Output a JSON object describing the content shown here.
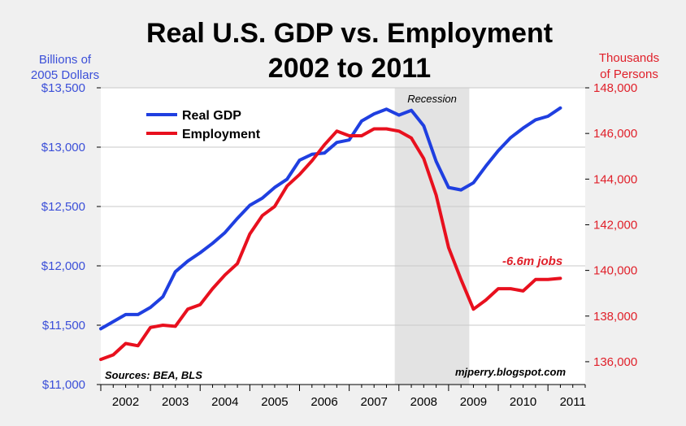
{
  "chart_data": {
    "type": "line",
    "title_line1": "Real U.S. GDP vs. Employment",
    "title_line2": "2002 to 2011",
    "ylabel_left": [
      "Billions of",
      "2005 Dollars"
    ],
    "ylabel_right": [
      "Thousands",
      "of Persons"
    ],
    "x_ticks": [
      "2002",
      "2003",
      "2004",
      "2005",
      "2006",
      "2007",
      "2008",
      "2009",
      "2010",
      "2011"
    ],
    "xlim": [
      2002.0,
      2011.75
    ],
    "ylim_left": [
      11000,
      13500
    ],
    "ylim_right": [
      135000,
      148000
    ],
    "left_ticks": [
      {
        "value": 11000,
        "label": "$11,000"
      },
      {
        "value": 11500,
        "label": "$11,500"
      },
      {
        "value": 12000,
        "label": "$12,000"
      },
      {
        "value": 12500,
        "label": "$12,500"
      },
      {
        "value": 13000,
        "label": "$13,000"
      },
      {
        "value": 13500,
        "label": "$13,500"
      }
    ],
    "right_ticks": [
      {
        "value": 136000,
        "label": "136,000"
      },
      {
        "value": 138000,
        "label": "138,000"
      },
      {
        "value": 140000,
        "label": "140,000"
      },
      {
        "value": 142000,
        "label": "142,000"
      },
      {
        "value": 144000,
        "label": "144,000"
      },
      {
        "value": 146000,
        "label": "146,000"
      },
      {
        "value": 148000,
        "label": "148,000"
      }
    ],
    "grid": true,
    "legend_position": "top-left",
    "recession": {
      "start": 2007.917,
      "end": 2009.417,
      "label": "Recession",
      "color": "#e3e3e3"
    },
    "series": [
      {
        "name": "Real GDP",
        "axis": "left",
        "color": "#1f3fe0",
        "x": [
          2002.0,
          2002.25,
          2002.5,
          2002.75,
          2003.0,
          2003.25,
          2003.5,
          2003.75,
          2004.0,
          2004.25,
          2004.5,
          2004.75,
          2005.0,
          2005.25,
          2005.5,
          2005.75,
          2006.0,
          2006.25,
          2006.5,
          2006.75,
          2007.0,
          2007.25,
          2007.5,
          2007.75,
          2008.0,
          2008.25,
          2008.5,
          2008.75,
          2009.0,
          2009.25,
          2009.5,
          2009.75,
          2010.0,
          2010.25,
          2010.5,
          2010.75,
          2011.0,
          2011.25
        ],
        "values": [
          11470,
          11530,
          11590,
          11590,
          11650,
          11740,
          11950,
          12040,
          12110,
          12190,
          12280,
          12400,
          12510,
          12570,
          12660,
          12730,
          12890,
          12940,
          12950,
          13040,
          13060,
          13220,
          13280,
          13320,
          13270,
          13310,
          13180,
          12880,
          12660,
          12640,
          12700,
          12840,
          12970,
          13080,
          13160,
          13230,
          13260,
          13330
        ]
      },
      {
        "name": "Employment",
        "axis": "right",
        "color": "#e8101e",
        "x": [
          2002.0,
          2002.25,
          2002.5,
          2002.75,
          2003.0,
          2003.25,
          2003.5,
          2003.75,
          2004.0,
          2004.25,
          2004.5,
          2004.75,
          2005.0,
          2005.25,
          2005.5,
          2005.75,
          2006.0,
          2006.25,
          2006.5,
          2006.75,
          2007.0,
          2007.25,
          2007.5,
          2007.75,
          2008.0,
          2008.25,
          2008.5,
          2008.75,
          2009.0,
          2009.25,
          2009.5,
          2009.75,
          2010.0,
          2010.25,
          2010.5,
          2010.75,
          2011.0,
          2011.25
        ],
        "values": [
          136100,
          136300,
          136800,
          136700,
          137500,
          137600,
          137550,
          138300,
          138500,
          139200,
          139800,
          140300,
          141600,
          142400,
          142800,
          143700,
          144200,
          144800,
          145500,
          146100,
          145900,
          145900,
          146200,
          146200,
          146100,
          145800,
          144900,
          143300,
          141000,
          139600,
          138300,
          138700,
          139200,
          139200,
          139100,
          139600,
          139600,
          139650
        ]
      }
    ],
    "annotations": {
      "jobs": "-6.6m jobs",
      "sources": "Sources: BEA, BLS",
      "credit": "mjperry.blogspot.com"
    }
  }
}
